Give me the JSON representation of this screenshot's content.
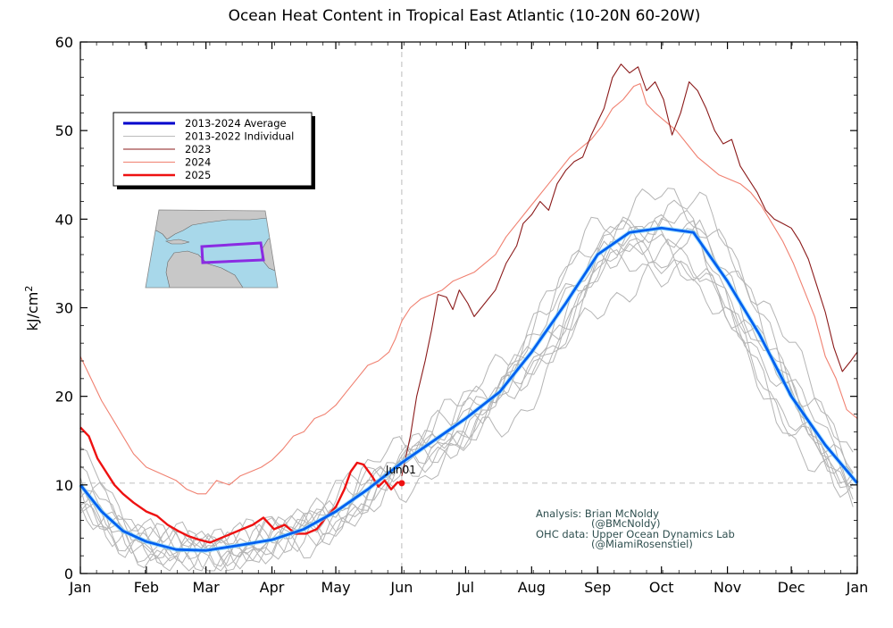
{
  "chart_data": {
    "type": "line",
    "title": "Ocean Heat Content in Tropical East Atlantic (10-20N 60-20W)",
    "ylabel_base": "kJ/cm",
    "ylabel_sup": "2",
    "ylim": [
      0,
      60
    ],
    "yticks": [
      0,
      10,
      20,
      30,
      40,
      50,
      60
    ],
    "xlim": [
      0,
      365
    ],
    "months": [
      {
        "label": "Jan",
        "day": 0
      },
      {
        "label": "Feb",
        "day": 31
      },
      {
        "label": "Mar",
        "day": 59
      },
      {
        "label": "Apr",
        "day": 90
      },
      {
        "label": "May",
        "day": 120
      },
      {
        "label": "Jun",
        "day": 151
      },
      {
        "label": "Jul",
        "day": 181
      },
      {
        "label": "Aug",
        "day": 212
      },
      {
        "label": "Sep",
        "day": 243
      },
      {
        "label": "Oct",
        "day": 273
      },
      {
        "label": "Nov",
        "day": 304
      },
      {
        "label": "Dec",
        "day": 334
      },
      {
        "label": "Jan",
        "day": 365
      }
    ],
    "reference": {
      "day": 151,
      "value": 10.2,
      "label": "Jun01"
    },
    "legend": [
      {
        "label": "2013-2024 Average",
        "color": "#0000cc"
      },
      {
        "label": "2013-2022 Individual",
        "color": "#bbbbbb"
      },
      {
        "label": "2023",
        "color": "#8b1a1a"
      },
      {
        "label": "2024",
        "color": "#f08070"
      },
      {
        "label": "2025",
        "color": "#ee1111"
      }
    ],
    "credits": [
      "Analysis: Brian McNoldy",
      "(@BMcNoldy)",
      "OHC data: Upper Ocean Dynamics Lab",
      "(@MiamiRosenstiel)"
    ],
    "series": [
      {
        "name": "2013-2024 Average",
        "color": "#0060f0",
        "x": [
          0,
          10,
          20,
          31,
          45,
          59,
          75,
          90,
          105,
          120,
          135,
          151,
          166,
          181,
          197,
          212,
          228,
          243,
          258,
          273,
          288,
          304,
          319,
          334,
          350,
          365
        ],
        "y": [
          10.0,
          7.0,
          4.8,
          3.6,
          2.7,
          2.6,
          3.2,
          3.8,
          5.0,
          7.0,
          9.5,
          12.5,
          15.0,
          17.5,
          20.5,
          25.0,
          30.5,
          36.0,
          38.5,
          39.0,
          38.5,
          33.0,
          27.0,
          20.0,
          14.5,
          10.2
        ]
      },
      {
        "name": "2023",
        "color": "#8b1a1a",
        "x": [
          151,
          155,
          158,
          162,
          165,
          168,
          172,
          175,
          178,
          182,
          185,
          190,
          195,
          200,
          205,
          208,
          212,
          216,
          220,
          224,
          228,
          232,
          236,
          240,
          243,
          246,
          250,
          254,
          258,
          262,
          266,
          270,
          274,
          278,
          282,
          286,
          290,
          294,
          298,
          302,
          306,
          310,
          314,
          318,
          322,
          326,
          330,
          334,
          338,
          342,
          346,
          350,
          354,
          358,
          362,
          365
        ],
        "y": [
          11.0,
          15.5,
          20.0,
          24.0,
          27.5,
          31.5,
          31.2,
          29.8,
          32.0,
          30.5,
          29.0,
          30.5,
          32.0,
          35.0,
          37.0,
          39.5,
          40.5,
          42.0,
          41.0,
          44.0,
          45.5,
          46.5,
          47.0,
          49.5,
          51.0,
          52.5,
          56.0,
          57.5,
          56.5,
          57.2,
          54.5,
          55.5,
          53.5,
          49.5,
          52.0,
          55.5,
          54.5,
          52.5,
          50.0,
          48.5,
          49.0,
          46.0,
          44.5,
          43.0,
          41.0,
          40.0,
          39.5,
          39.0,
          37.5,
          35.5,
          32.5,
          29.5,
          25.5,
          22.8,
          24.0,
          25.0
        ]
      },
      {
        "name": "2024",
        "color": "#f08070",
        "x": [
          0,
          5,
          10,
          15,
          20,
          25,
          31,
          45,
          50,
          55,
          59,
          64,
          70,
          75,
          80,
          85,
          90,
          95,
          100,
          105,
          110,
          115,
          120,
          125,
          130,
          135,
          140,
          145,
          148,
          151,
          155,
          160,
          165,
          170,
          175,
          180,
          185,
          190,
          195,
          200,
          205,
          210,
          215,
          220,
          225,
          230,
          235,
          240,
          245,
          250,
          255,
          260,
          263,
          266,
          270,
          275,
          280,
          285,
          290,
          295,
          300,
          305,
          310,
          315,
          320,
          325,
          330,
          335,
          340,
          345,
          350,
          355,
          360,
          365
        ],
        "y": [
          24.5,
          22.0,
          19.5,
          17.5,
          15.5,
          13.5,
          12.0,
          10.5,
          9.5,
          9.0,
          9.0,
          10.5,
          10.0,
          11.0,
          11.5,
          12.0,
          12.8,
          14.0,
          15.5,
          16.0,
          17.5,
          18.0,
          19.0,
          20.5,
          22.0,
          23.5,
          24.0,
          25.0,
          26.5,
          28.5,
          30.0,
          31.0,
          31.5,
          32.0,
          33.0,
          33.5,
          34.0,
          35.0,
          36.0,
          38.0,
          39.5,
          41.0,
          42.5,
          44.0,
          45.5,
          47.0,
          48.0,
          49.0,
          50.5,
          52.5,
          53.5,
          55.0,
          55.3,
          53.0,
          52.0,
          51.0,
          50.0,
          48.5,
          47.0,
          46.0,
          45.0,
          44.5,
          44.0,
          43.0,
          41.5,
          39.5,
          37.5,
          35.0,
          32.0,
          29.0,
          24.5,
          22.0,
          18.5,
          17.5
        ]
      },
      {
        "name": "2025",
        "color": "#ee1111",
        "x": [
          0,
          4,
          8,
          12,
          16,
          20,
          25,
          31,
          36,
          41,
          46,
          51,
          56,
          61,
          66,
          71,
          76,
          81,
          86,
          91,
          96,
          101,
          106,
          111,
          116,
          120,
          124,
          127,
          130,
          133,
          137,
          140,
          143,
          146,
          149,
          151
        ],
        "y": [
          16.5,
          15.5,
          13.0,
          11.5,
          10.0,
          9.0,
          8.0,
          7.0,
          6.5,
          5.5,
          4.8,
          4.2,
          3.8,
          3.5,
          4.0,
          4.5,
          5.0,
          5.5,
          6.3,
          5.0,
          5.5,
          4.5,
          4.5,
          5.0,
          6.5,
          7.5,
          9.5,
          11.5,
          12.5,
          12.3,
          11.0,
          9.8,
          10.5,
          9.5,
          10.3,
          10.2
        ]
      }
    ]
  }
}
